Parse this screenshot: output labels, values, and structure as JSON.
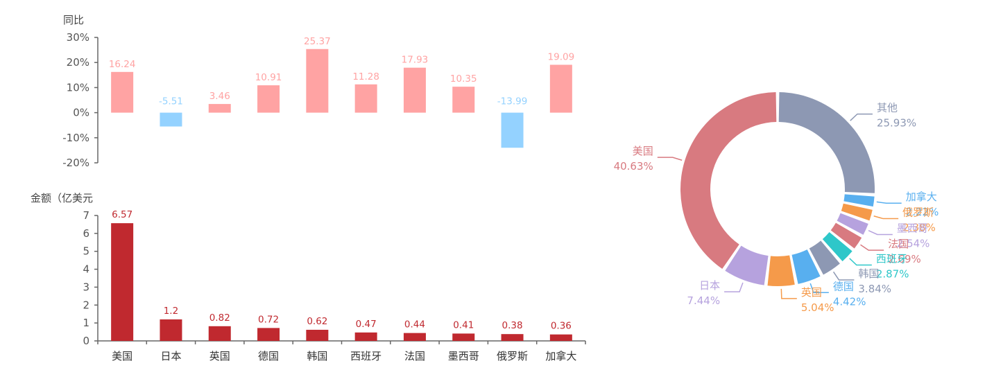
{
  "chart_data": [
    {
      "type": "bar",
      "ylabel": "同比",
      "categories": [
        "美国",
        "日本",
        "英国",
        "德国",
        "韩国",
        "西班牙",
        "法国",
        "墨西哥",
        "俄罗斯",
        "加拿大"
      ],
      "values": [
        16.24,
        -5.51,
        3.46,
        10.91,
        25.37,
        11.28,
        17.93,
        10.35,
        -13.99,
        19.09
      ],
      "value_labels": [
        "16.24",
        "-5.51",
        "3.46",
        "10.91",
        "25.37",
        "11.28",
        "17.93",
        "10.35",
        "-13.99",
        "19.09"
      ],
      "yticks": [
        30,
        20,
        10,
        0,
        -10,
        -20
      ],
      "ytick_labels": [
        "30%",
        "20%",
        "10%",
        "0%",
        "-10%",
        "-20%"
      ],
      "ylim": [
        -20,
        30
      ],
      "colors": {
        "positive": "#ffa3a3",
        "negative": "#94d2ff"
      }
    },
    {
      "type": "bar",
      "ylabel": "金额（亿美元",
      "categories": [
        "美国",
        "日本",
        "英国",
        "德国",
        "韩国",
        "西班牙",
        "法国",
        "墨西哥",
        "俄罗斯",
        "加拿大"
      ],
      "values": [
        6.57,
        1.2,
        0.82,
        0.72,
        0.62,
        0.47,
        0.44,
        0.41,
        0.38,
        0.36
      ],
      "value_labels": [
        "6.57",
        "1.2",
        "0.82",
        "0.72",
        "0.62",
        "0.47",
        "0.44",
        "0.41",
        "0.38",
        "0.36"
      ],
      "yticks": [
        0,
        1,
        2,
        3,
        4,
        5,
        6,
        7
      ],
      "ytick_labels": [
        "0",
        "1",
        "2",
        "3",
        "4",
        "5",
        "6",
        "7"
      ],
      "ylim": [
        0,
        7
      ],
      "color": "#c0292f"
    },
    {
      "type": "pie",
      "donut": true,
      "slices": [
        {
          "name": "其他",
          "value": 25.93,
          "label": "25.93%",
          "color": "#8d98b3"
        },
        {
          "name": "加拿大",
          "value": 2.22,
          "label": "2.22%",
          "color": "#58afef"
        },
        {
          "name": "俄罗斯",
          "value": 2.38,
          "label": "2.38%",
          "color": "#f59a4a"
        },
        {
          "name": "墨西哥",
          "value": 2.54,
          "label": "2.54%",
          "color": "#b6a2de"
        },
        {
          "name": "法国",
          "value": 2.69,
          "label": "2.69%",
          "color": "#d87a80"
        },
        {
          "name": "西班牙",
          "value": 2.87,
          "label": "2.87%",
          "color": "#2ec7c9"
        },
        {
          "name": "韩国",
          "value": 3.84,
          "label": "3.84%",
          "color": "#8d98b3"
        },
        {
          "name": "德国",
          "value": 4.42,
          "label": "4.42%",
          "color": "#58afef"
        },
        {
          "name": "英国",
          "value": 5.04,
          "label": "5.04%",
          "color": "#f59a4a"
        },
        {
          "name": "日本",
          "value": 7.44,
          "label": "7.44%",
          "color": "#b6a2de"
        },
        {
          "name": "美国",
          "value": 40.63,
          "label": "40.63%",
          "color": "#d87a80"
        }
      ]
    }
  ]
}
